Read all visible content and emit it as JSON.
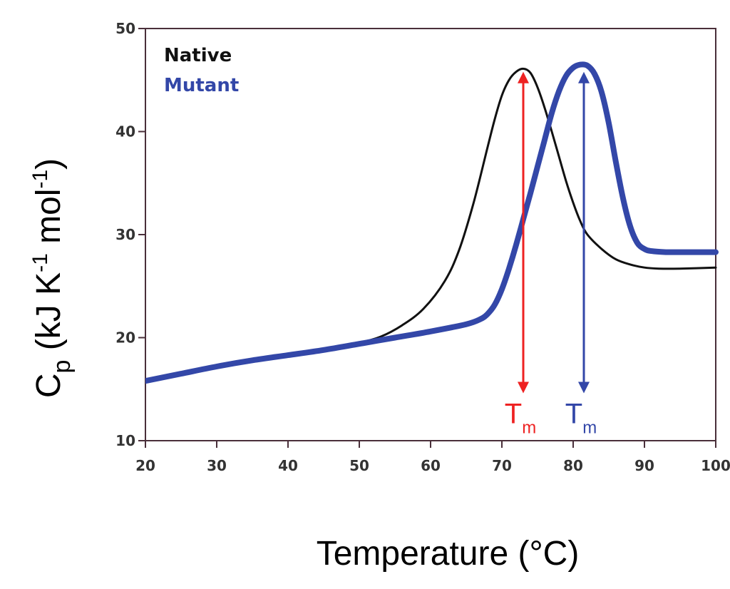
{
  "chart_data": {
    "type": "line",
    "title": "",
    "xlabel": "Temperature (°C)",
    "ylabel_parts": {
      "c": "C",
      "p": "p",
      "mid": " (kJ K",
      "sup1": "-1",
      "mol": " mol",
      "sup2": "-1",
      "end": ")"
    },
    "xlim": [
      20,
      100
    ],
    "ylim": [
      10,
      50
    ],
    "x_ticks": [
      "20",
      "30",
      "40",
      "50",
      "60",
      "70",
      "80",
      "90",
      "100"
    ],
    "y_ticks": [
      "10",
      "20",
      "30",
      "40",
      "50"
    ],
    "grid": false,
    "legend_position": "top-left",
    "series": [
      {
        "name": "Native",
        "color": "#111111",
        "x": [
          20,
          25,
          30,
          35,
          40,
          45,
          50,
          53,
          56,
          59,
          62,
          64,
          66,
          68,
          69,
          70,
          71,
          72,
          73,
          74,
          75,
          76,
          77,
          78,
          79,
          80,
          81,
          82,
          84,
          86,
          88,
          90,
          92,
          95,
          100
        ],
        "y": [
          15.8,
          16.6,
          17.3,
          17.8,
          18.3,
          18.8,
          19.5,
          20.1,
          21.2,
          22.8,
          25.5,
          28.5,
          33.0,
          38.5,
          41.2,
          43.5,
          45.0,
          45.8,
          46.1,
          45.7,
          44.3,
          42.3,
          40.0,
          37.6,
          35.2,
          33.1,
          31.3,
          30.0,
          28.6,
          27.6,
          27.1,
          26.8,
          26.7,
          26.7,
          26.8
        ]
      },
      {
        "name": "Mutant",
        "color": "#3347a8",
        "x": [
          20,
          25,
          30,
          35,
          40,
          45,
          50,
          55,
          60,
          65,
          67,
          68,
          69,
          70,
          71,
          72,
          73,
          74,
          75,
          76,
          77,
          78,
          79,
          80,
          81,
          82,
          83,
          84,
          85,
          86,
          87,
          88,
          89,
          90,
          91,
          93,
          95,
          100
        ],
        "y": [
          15.8,
          16.5,
          17.2,
          17.8,
          18.3,
          18.8,
          19.4,
          20.0,
          20.6,
          21.3,
          21.8,
          22.3,
          23.2,
          24.7,
          26.7,
          29.0,
          31.5,
          34.0,
          36.6,
          39.2,
          41.8,
          43.9,
          45.4,
          46.2,
          46.5,
          46.4,
          45.6,
          43.8,
          40.8,
          37.0,
          33.5,
          30.8,
          29.2,
          28.6,
          28.4,
          28.3,
          28.3,
          28.3
        ]
      }
    ],
    "annotations": [
      {
        "label": "T",
        "sub": "m",
        "x": 73,
        "y_top": 45.8,
        "y_bottom": 14.6,
        "color": "#ee2222"
      },
      {
        "label": "T",
        "sub": "m",
        "x": 81.5,
        "y_top": 45.8,
        "y_bottom": 14.6,
        "color": "#3347a8"
      }
    ]
  }
}
